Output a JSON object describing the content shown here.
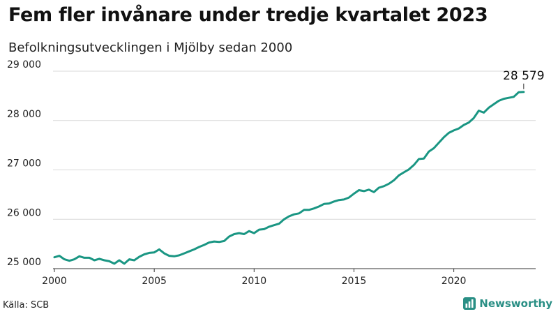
{
  "title": "Fem fler invånare under tredje kvartalet 2023",
  "subtitle": "Befolkningsutvecklingen i Mjölby sedan 2000",
  "source": "Källa: SCB",
  "brand": "Newsworthy",
  "colors": {
    "line": "#1a9683",
    "grid": "#d9d9d9",
    "axis": "#333333",
    "brand": "#2a8f85"
  },
  "chart_data": {
    "type": "line",
    "title": "Fem fler invånare under tredje kvartalet 2023",
    "subtitle": "Befolkningsutvecklingen i Mjölby sedan 2000",
    "xlabel": "",
    "ylabel": "",
    "xlim": [
      2000,
      2024.1
    ],
    "ylim": [
      25000,
      29000
    ],
    "yticks": [
      25000,
      26000,
      27000,
      28000,
      29000
    ],
    "ytick_labels": [
      "25 000",
      "26 000",
      "27 000",
      "28 000",
      "29 000"
    ],
    "xticks": [
      2000,
      2005,
      2010,
      2015,
      2020
    ],
    "xtick_labels": [
      "2000",
      "2005",
      "2010",
      "2015",
      "2020"
    ],
    "grid": "horizontal",
    "annotation": {
      "text": "28 579",
      "x": 2023.5,
      "y": 28579
    },
    "series": [
      {
        "values": [
          [
            2000.0,
            25230
          ],
          [
            2000.25,
            25260
          ],
          [
            2000.5,
            25190
          ],
          [
            2000.75,
            25160
          ],
          [
            2001.0,
            25190
          ],
          [
            2001.25,
            25250
          ],
          [
            2001.5,
            25220
          ],
          [
            2001.75,
            25220
          ],
          [
            2002.0,
            25170
          ],
          [
            2002.25,
            25200
          ],
          [
            2002.5,
            25170
          ],
          [
            2002.75,
            25150
          ],
          [
            2003.0,
            25100
          ],
          [
            2003.25,
            25170
          ],
          [
            2003.5,
            25100
          ],
          [
            2003.75,
            25190
          ],
          [
            2004.0,
            25170
          ],
          [
            2004.25,
            25240
          ],
          [
            2004.5,
            25290
          ],
          [
            2004.75,
            25320
          ],
          [
            2005.0,
            25330
          ],
          [
            2005.25,
            25390
          ],
          [
            2005.5,
            25310
          ],
          [
            2005.75,
            25260
          ],
          [
            2006.0,
            25250
          ],
          [
            2006.25,
            25270
          ],
          [
            2006.5,
            25310
          ],
          [
            2006.75,
            25350
          ],
          [
            2007.0,
            25390
          ],
          [
            2007.25,
            25440
          ],
          [
            2007.5,
            25480
          ],
          [
            2007.75,
            25530
          ],
          [
            2008.0,
            25550
          ],
          [
            2008.25,
            25540
          ],
          [
            2008.5,
            25560
          ],
          [
            2008.75,
            25650
          ],
          [
            2009.0,
            25700
          ],
          [
            2009.25,
            25720
          ],
          [
            2009.5,
            25700
          ],
          [
            2009.75,
            25760
          ],
          [
            2010.0,
            25720
          ],
          [
            2010.25,
            25790
          ],
          [
            2010.5,
            25800
          ],
          [
            2010.75,
            25850
          ],
          [
            2011.0,
            25880
          ],
          [
            2011.25,
            25910
          ],
          [
            2011.5,
            26000
          ],
          [
            2011.75,
            26060
          ],
          [
            2012.0,
            26100
          ],
          [
            2012.25,
            26120
          ],
          [
            2012.5,
            26190
          ],
          [
            2012.75,
            26190
          ],
          [
            2013.0,
            26220
          ],
          [
            2013.25,
            26260
          ],
          [
            2013.5,
            26310
          ],
          [
            2013.75,
            26320
          ],
          [
            2014.0,
            26360
          ],
          [
            2014.25,
            26390
          ],
          [
            2014.5,
            26400
          ],
          [
            2014.75,
            26440
          ],
          [
            2015.0,
            26520
          ],
          [
            2015.25,
            26590
          ],
          [
            2015.5,
            26570
          ],
          [
            2015.75,
            26600
          ],
          [
            2016.0,
            26550
          ],
          [
            2016.25,
            26640
          ],
          [
            2016.5,
            26670
          ],
          [
            2016.75,
            26720
          ],
          [
            2017.0,
            26790
          ],
          [
            2017.25,
            26890
          ],
          [
            2017.5,
            26950
          ],
          [
            2017.75,
            27010
          ],
          [
            2018.0,
            27100
          ],
          [
            2018.25,
            27220
          ],
          [
            2018.5,
            27230
          ],
          [
            2018.75,
            27370
          ],
          [
            2019.0,
            27440
          ],
          [
            2019.25,
            27550
          ],
          [
            2019.5,
            27660
          ],
          [
            2019.75,
            27750
          ],
          [
            2020.0,
            27800
          ],
          [
            2020.25,
            27840
          ],
          [
            2020.5,
            27910
          ],
          [
            2020.75,
            27960
          ],
          [
            2021.0,
            28050
          ],
          [
            2021.25,
            28200
          ],
          [
            2021.5,
            28160
          ],
          [
            2021.75,
            28260
          ],
          [
            2022.0,
            28330
          ],
          [
            2022.25,
            28400
          ],
          [
            2022.5,
            28440
          ],
          [
            2022.75,
            28460
          ],
          [
            2023.0,
            28480
          ],
          [
            2023.25,
            28574
          ],
          [
            2023.5,
            28579
          ]
        ]
      }
    ]
  }
}
